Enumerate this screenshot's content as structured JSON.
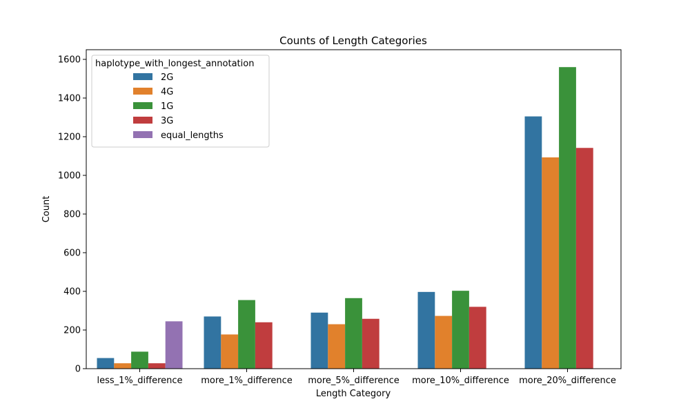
{
  "chart_data": {
    "type": "bar",
    "title": "Counts of Length Categories",
    "xlabel": "Length Category",
    "ylabel": "Count",
    "ylim": [
      0,
      1650
    ],
    "yticks": [
      0,
      200,
      400,
      600,
      800,
      1000,
      1200,
      1400,
      1600
    ],
    "grid": false,
    "legend_title": "haplotype_with_longest_annotation",
    "legend_position": "top-left",
    "categories": [
      "less_1%_difference",
      "more_1%_difference",
      "more_5%_difference",
      "more_10%_difference",
      "more_20%_difference"
    ],
    "series": [
      {
        "name": "2G",
        "color": "#3274a1",
        "values": [
          55,
          270,
          290,
          397,
          1305
        ]
      },
      {
        "name": "4G",
        "color": "#e1812c",
        "values": [
          28,
          177,
          230,
          273,
          1093
        ]
      },
      {
        "name": "1G",
        "color": "#3a923a",
        "values": [
          88,
          355,
          365,
          403,
          1560
        ]
      },
      {
        "name": "3G",
        "color": "#c03d3e",
        "values": [
          28,
          240,
          258,
          320,
          1142
        ]
      },
      {
        "name": "equal_lengths",
        "color": "#9372b2",
        "values": [
          245,
          0,
          0,
          0,
          0
        ]
      }
    ]
  }
}
